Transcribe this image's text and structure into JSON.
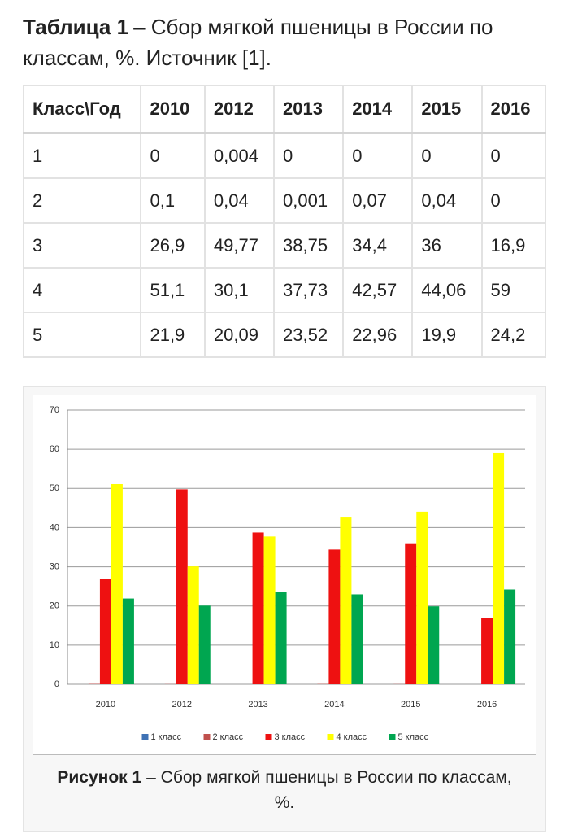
{
  "table_caption": {
    "label": "Таблица 1",
    "text": "– Сбор мягкой пшеницы в России по классам, %. Источник [1]."
  },
  "table": {
    "header": [
      "Класс\\Год",
      "2010",
      "2012",
      "2013",
      "2014",
      "2015",
      "2016"
    ],
    "rows": [
      [
        "1",
        "0",
        "0,004",
        "0",
        "0",
        "0",
        "0"
      ],
      [
        "2",
        "0,1",
        "0,04",
        "0,001",
        "0,07",
        "0,04",
        "0"
      ],
      [
        "3",
        "26,9",
        "49,77",
        "38,75",
        "34,4",
        "36",
        "16,9"
      ],
      [
        "4",
        "51,1",
        "30,1",
        "37,73",
        "42,57",
        "44,06",
        "59"
      ],
      [
        "5",
        "21,9",
        "20,09",
        "23,52",
        "22,96",
        "19,9",
        "24,2"
      ]
    ]
  },
  "chart_data": {
    "type": "bar",
    "categories": [
      "2010",
      "2012",
      "2013",
      "2014",
      "2015",
      "2016"
    ],
    "series": [
      {
        "name": "1 класс",
        "color": "#3f72b5",
        "values": [
          0,
          0.004,
          0,
          0,
          0,
          0
        ]
      },
      {
        "name": "2 класс",
        "color": "#c0504d",
        "values": [
          0.1,
          0.04,
          0.001,
          0.07,
          0.04,
          0
        ]
      },
      {
        "name": "3 класс",
        "color": "#ee1111",
        "values": [
          26.9,
          49.77,
          38.75,
          34.4,
          36,
          16.9
        ]
      },
      {
        "name": "4 класс",
        "color": "#ffff00",
        "values": [
          51.1,
          30.1,
          37.73,
          42.57,
          44.06,
          59
        ]
      },
      {
        "name": "5 класс",
        "color": "#00a650",
        "values": [
          21.9,
          20.09,
          23.52,
          22.96,
          19.9,
          24.2
        ]
      }
    ],
    "ylim": [
      0,
      70
    ],
    "yticks": [
      0,
      10,
      20,
      30,
      40,
      50,
      60,
      70
    ],
    "grid": true,
    "legend": "bottom"
  },
  "figure_caption": {
    "label": "Рисунок 1",
    "text": "– Сбор мягкой пшеницы в России по классам, %."
  }
}
